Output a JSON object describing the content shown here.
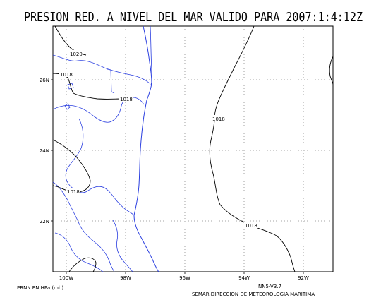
{
  "title": "PRESION RED. A NIVEL DEL MAR VALIDO PARA 2007:1:4:12Z",
  "lat_labels": [
    "26N",
    "24N",
    "22N"
  ],
  "lon_labels": [
    "100W",
    "98W",
    "96W",
    "94W",
    "92W"
  ],
  "isobar_labels": [
    "1020",
    "1018",
    "1018",
    "1018",
    "1018",
    "1018"
  ],
  "footer": {
    "units": "PRNN EN HPa (mb)",
    "model": "NN5-V3.7",
    "source": "SEMAR-DIRECCION DE METEOROLOGIA MARITIMA"
  },
  "colors": {
    "coastline": "#2b3fe0",
    "isobars": "#000000",
    "grid": "#888888"
  }
}
